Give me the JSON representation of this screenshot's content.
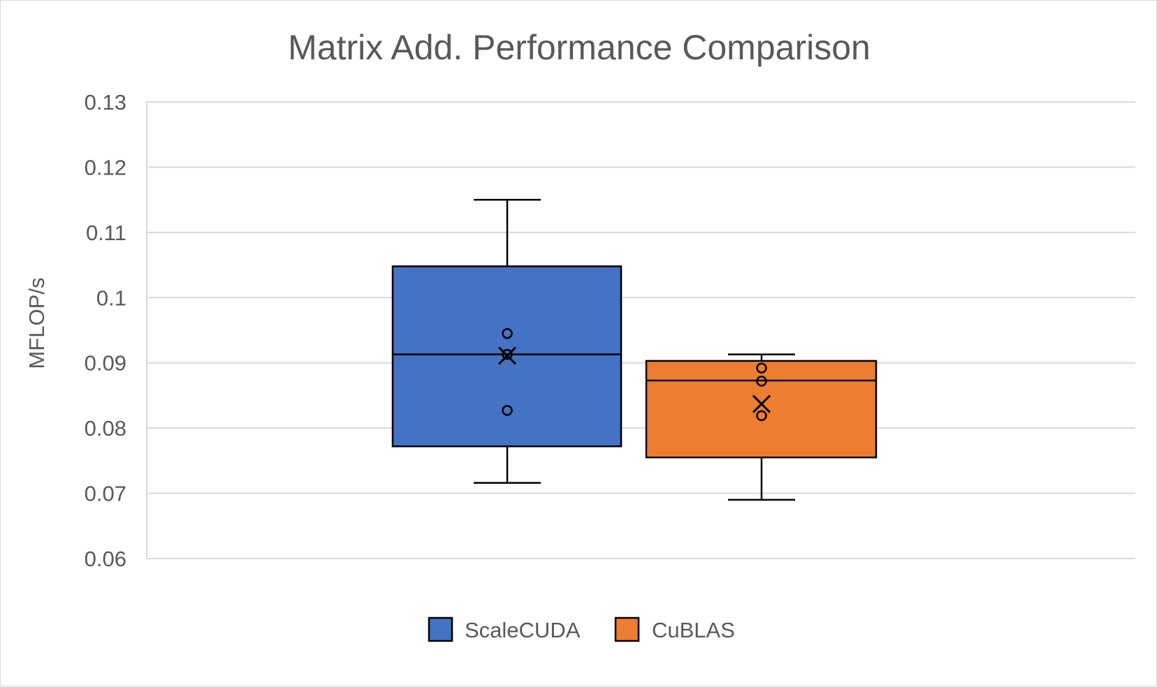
{
  "chart_data": {
    "type": "box",
    "title": "Matrix Add. Performance Comparison",
    "xlabel": "",
    "ylabel": "MFLOP/s",
    "ylim": [
      0.06,
      0.13
    ],
    "yticks": [
      0.06,
      0.07,
      0.08,
      0.09,
      0.1,
      0.11,
      0.12,
      0.13
    ],
    "ytick_labels": [
      "0.06",
      "0.07",
      "0.08",
      "0.09",
      "0.1",
      "0.11",
      "0.12",
      "0.13"
    ],
    "grid": true,
    "legend_position": "bottom",
    "series": [
      {
        "name": "ScaleCUDA",
        "color": "#4472c4",
        "whisker_low": 0.0716,
        "q1": 0.0772,
        "median": 0.0913,
        "q3": 0.1048,
        "whisker_high": 0.115,
        "mean": 0.0911,
        "points": [
          0.0945,
          0.0913,
          0.0827
        ]
      },
      {
        "name": "CuBLAS",
        "color": "#ed7d31",
        "whisker_low": 0.069,
        "q1": 0.0755,
        "median": 0.0873,
        "q3": 0.0903,
        "whisker_high": 0.0913,
        "mean": 0.0837,
        "points": [
          0.0892,
          0.0872,
          0.0819
        ]
      }
    ]
  }
}
